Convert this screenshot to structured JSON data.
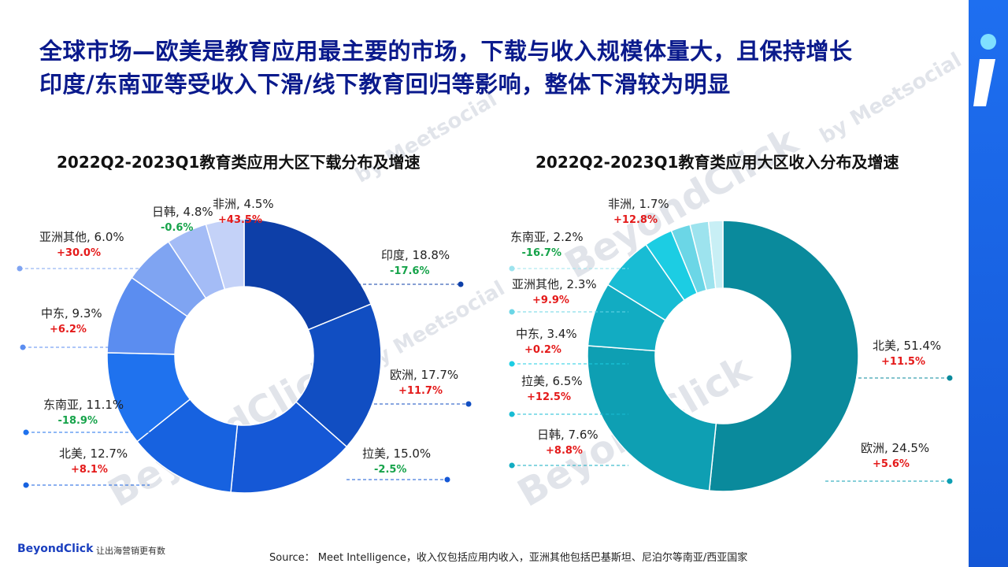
{
  "title": {
    "line1": "全球市场—欧美是教育应用最主要的市场，下载与收入规模体量大，且保持增长",
    "line2": "印度/东南亚等受收入下滑/线下教育回归等影响，整体下滑较为明显"
  },
  "chart_data": [
    {
      "type": "pie",
      "title": "2022Q2-2023Q1教育类应用大区下载分布及增速",
      "slices": [
        {
          "label": "印度",
          "share": "18.8%",
          "value": 18.8,
          "growth": "-17.6%",
          "color": "#0d3fa8"
        },
        {
          "label": "欧洲",
          "share": "17.7%",
          "value": 17.7,
          "growth": "+11.7%",
          "color": "#114ec2"
        },
        {
          "label": "拉美",
          "share": "15.0%",
          "value": 15.0,
          "growth": "-2.5%",
          "color": "#1558d6"
        },
        {
          "label": "北美",
          "share": "12.7%",
          "value": 12.7,
          "growth": "+8.1%",
          "color": "#1762e0"
        },
        {
          "label": "东南亚",
          "share": "11.1%",
          "value": 11.1,
          "growth": "-18.9%",
          "color": "#1f72ee"
        },
        {
          "label": "中东",
          "share": "9.3%",
          "value": 9.3,
          "growth": "+6.2%",
          "color": "#5b8df0"
        },
        {
          "label": "亚洲其他",
          "share": "6.0%",
          "value": 6.0,
          "growth": "+30.0%",
          "color": "#7fa4f2"
        },
        {
          "label": "日韩",
          "share": "4.8%",
          "value": 4.8,
          "growth": "-0.6%",
          "color": "#a4bcf6"
        },
        {
          "label": "非洲",
          "share": "4.5%",
          "value": 4.5,
          "growth": "+43.5%",
          "color": "#c4d2f8"
        }
      ]
    },
    {
      "type": "pie",
      "title": "2022Q2-2023Q1教育类应用大区收入分布及增速",
      "slices": [
        {
          "label": "北美",
          "share": "51.4%",
          "value": 51.4,
          "growth": "+11.5%",
          "color": "#0a8a9c"
        },
        {
          "label": "欧洲",
          "share": "24.5%",
          "value": 24.5,
          "growth": "+5.6%",
          "color": "#0e9fb3"
        },
        {
          "label": "日韩",
          "share": "7.6%",
          "value": 7.6,
          "growth": "+8.8%",
          "color": "#12acc2"
        },
        {
          "label": "拉美",
          "share": "6.5%",
          "value": 6.5,
          "growth": "+12.5%",
          "color": "#18bcd4"
        },
        {
          "label": "中东",
          "share": "3.4%",
          "value": 3.4,
          "growth": "+0.2%",
          "color": "#1ccde3"
        },
        {
          "label": "亚洲其他",
          "share": "2.3%",
          "value": 2.3,
          "growth": "+9.9%",
          "color": "#6bd6e6"
        },
        {
          "label": "东南亚",
          "share": "2.2%",
          "value": 2.2,
          "growth": "-16.7%",
          "color": "#9de3ee"
        },
        {
          "label": "非洲",
          "share": "1.7%",
          "value": 1.7,
          "growth": "+12.8%",
          "color": "#c8eff5"
        }
      ]
    }
  ],
  "colors": {
    "positive": "#e41a1a",
    "negative": "#16a34a"
  },
  "footer": {
    "logo": "BeyondClick",
    "tagline": "让出海营销更有数",
    "source": "Source： Meet Intelligence，收入仅包括应用内收入，亚洲其他包括巴基斯坦、尼泊尔等南亚/西亚国家"
  }
}
